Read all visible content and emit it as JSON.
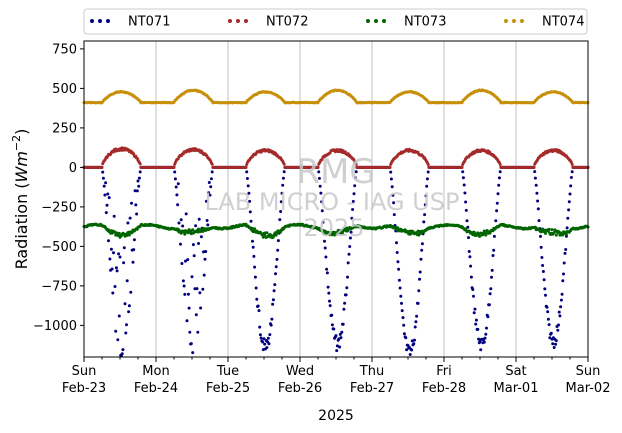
{
  "chart_data": {
    "type": "scatter",
    "ylabel_parts": [
      "Radiation (",
      "Wm",
      "−2",
      ")"
    ],
    "xlabel": "2025",
    "ylim": [
      -1200,
      800
    ],
    "yticks": [
      750,
      500,
      250,
      0,
      -250,
      -500,
      -750,
      -1000
    ],
    "ytick_labels": [
      "750",
      "500",
      "250",
      "0",
      "−250",
      "−500",
      "−750",
      "−1000"
    ],
    "xlim": [
      "2025-02-23",
      "2025-03-02"
    ],
    "xticks": [
      {
        "date": "2025-02-23",
        "day": "Sun",
        "label": "Feb-23"
      },
      {
        "date": "2025-02-24",
        "day": "Mon",
        "label": "Feb-24"
      },
      {
        "date": "2025-02-25",
        "day": "Tue",
        "label": "Feb-25"
      },
      {
        "date": "2025-02-26",
        "day": "Wed",
        "label": "Feb-26"
      },
      {
        "date": "2025-02-27",
        "day": "Thu",
        "label": "Feb-27"
      },
      {
        "date": "2025-02-28",
        "day": "Fri",
        "label": "Feb-28"
      },
      {
        "date": "2025-03-01",
        "day": "Sat",
        "label": "Mar-01"
      },
      {
        "date": "2025-03-02",
        "day": "Sun",
        "label": "Mar-02"
      }
    ],
    "grid": "vertical",
    "legend_placement": "top (above axes)",
    "watermark": [
      "RMG",
      "LAB MICRO - IAG USP",
      "2025"
    ],
    "series": [
      {
        "name": "NT071",
        "color": "#00007f",
        "night_value": 0,
        "daily_min": [
          -1170,
          -1180,
          -1150,
          -1130,
          -1190,
          -1130,
          -1110
        ]
      },
      {
        "name": "NT072",
        "color": "#a52a2a",
        "night_value": 0,
        "daily_max": [
          120,
          115,
          110,
          110,
          110,
          110,
          110
        ]
      },
      {
        "name": "NT073",
        "color": "#006400",
        "night_value": -375,
        "daily_min": [
          -420,
          -420,
          -430,
          -420,
          -420,
          -420,
          -430
        ]
      },
      {
        "name": "NT074",
        "color": "#c8900a",
        "night_value": 410,
        "daily_max": [
          480,
          490,
          480,
          490,
          480,
          490,
          480
        ]
      }
    ]
  }
}
